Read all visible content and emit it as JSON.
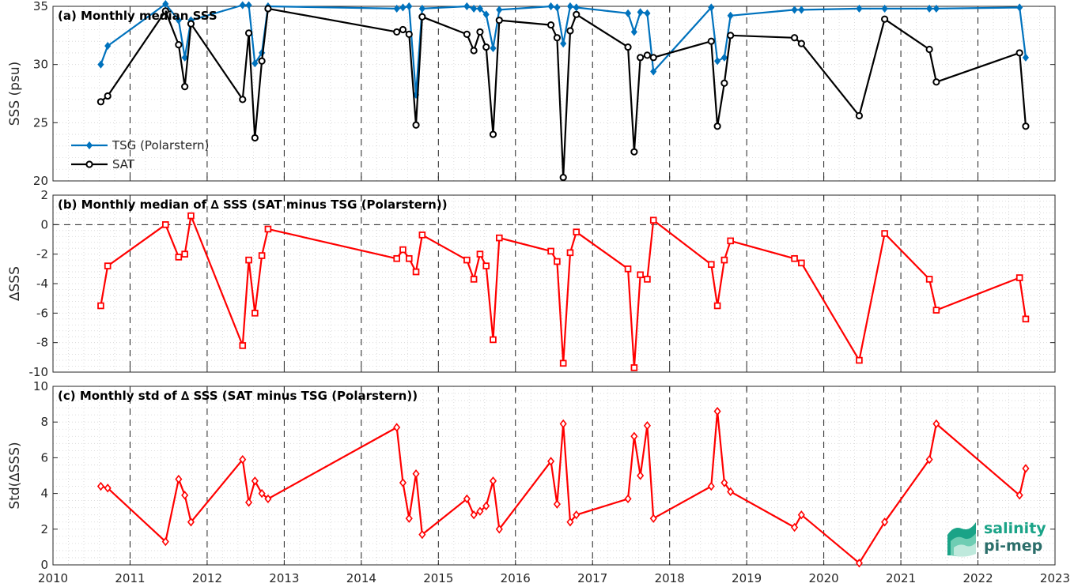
{
  "chart_data": [
    {
      "type": "line",
      "title": "(a) Monthly median SSS",
      "ylabel": "SSS (psu)",
      "xlim": [
        2010,
        2023
      ],
      "ylim": [
        20,
        35
      ],
      "yticks": [
        "20",
        "25",
        "30",
        "35"
      ],
      "grid": "dotted minor + dashed yearly verticals",
      "legend": "middle-left",
      "series": [
        {
          "name": "TSG (Polarstern)",
          "color": "#0072bd",
          "marker": "diamond",
          "x": [
            2010.62,
            2010.71,
            2011.46,
            2011.63,
            2011.71,
            2011.79,
            2012.46,
            2012.54,
            2012.62,
            2012.71,
            2012.79,
            2014.46,
            2014.54,
            2014.62,
            2014.71,
            2014.79,
            2015.37,
            2015.46,
            2015.54,
            2015.62,
            2015.71,
            2015.79,
            2016.46,
            2016.54,
            2016.62,
            2016.71,
            2016.79,
            2017.46,
            2017.54,
            2017.62,
            2017.71,
            2017.79,
            2018.54,
            2018.62,
            2018.71,
            2018.79,
            2019.62,
            2019.71,
            2020.46,
            2020.79,
            2021.37,
            2021.46,
            2022.54,
            2022.62
          ],
          "values": [
            30.0,
            31.6,
            35.2,
            33.8,
            30.6,
            33.8,
            35.1,
            35.1,
            30.1,
            31.0,
            35.0,
            34.8,
            34.9,
            35.0,
            27.4,
            34.8,
            35.0,
            34.8,
            34.8,
            34.3,
            31.4,
            34.7,
            35.0,
            34.9,
            31.8,
            35.0,
            34.9,
            34.4,
            32.8,
            34.5,
            34.4,
            29.4,
            34.9,
            30.3,
            30.6,
            34.2,
            34.7,
            34.7,
            34.8,
            34.8,
            34.8,
            34.8,
            34.9,
            30.6
          ]
        },
        {
          "name": "SAT",
          "color": "#000000",
          "marker": "circle",
          "x": [
            2010.62,
            2010.71,
            2011.46,
            2011.63,
            2011.71,
            2011.79,
            2012.46,
            2012.54,
            2012.62,
            2012.71,
            2012.79,
            2014.46,
            2014.54,
            2014.62,
            2014.71,
            2014.79,
            2015.37,
            2015.46,
            2015.54,
            2015.62,
            2015.71,
            2015.79,
            2016.46,
            2016.54,
            2016.62,
            2016.71,
            2016.79,
            2017.46,
            2017.54,
            2017.62,
            2017.71,
            2017.79,
            2018.54,
            2018.62,
            2018.71,
            2018.79,
            2019.62,
            2019.71,
            2020.46,
            2020.79,
            2021.37,
            2021.46,
            2022.54,
            2022.62
          ],
          "values": [
            26.8,
            27.3,
            34.6,
            31.7,
            28.1,
            33.5,
            27.0,
            32.7,
            23.7,
            30.3,
            34.8,
            32.8,
            33.0,
            32.6,
            24.8,
            34.1,
            32.6,
            31.2,
            32.8,
            31.5,
            24.0,
            33.8,
            33.4,
            32.3,
            20.3,
            32.9,
            34.3,
            31.5,
            22.5,
            30.6,
            30.8,
            30.6,
            32.0,
            24.7,
            28.4,
            32.5,
            32.3,
            31.8,
            25.6,
            33.9,
            31.3,
            28.5,
            31.0,
            24.7
          ]
        }
      ]
    },
    {
      "type": "line",
      "title": "(b) Monthly median of ∆ SSS (SAT minus TSG (Polarstern))",
      "ylabel": "∆SSS",
      "xlim": [
        2010,
        2023
      ],
      "ylim": [
        -10,
        2
      ],
      "yticks": [
        "-10",
        "-8",
        "-6",
        "-4",
        "-2",
        "0",
        "2"
      ],
      "reference_line": 0,
      "series": [
        {
          "color": "#ff0000",
          "marker": "square",
          "x": [
            2010.62,
            2010.71,
            2011.46,
            2011.63,
            2011.71,
            2011.79,
            2012.46,
            2012.54,
            2012.62,
            2012.71,
            2012.79,
            2014.46,
            2014.54,
            2014.62,
            2014.71,
            2014.79,
            2015.37,
            2015.46,
            2015.54,
            2015.62,
            2015.71,
            2015.79,
            2016.46,
            2016.54,
            2016.62,
            2016.71,
            2016.79,
            2017.46,
            2017.54,
            2017.62,
            2017.71,
            2017.79,
            2018.54,
            2018.62,
            2018.71,
            2018.79,
            2019.62,
            2019.71,
            2020.46,
            2020.79,
            2021.37,
            2021.46,
            2022.54,
            2022.62
          ],
          "values": [
            -5.5,
            -2.8,
            0.0,
            -2.2,
            -2.0,
            0.6,
            -8.2,
            -2.4,
            -6.0,
            -2.1,
            -0.3,
            -2.3,
            -1.7,
            -2.3,
            -3.2,
            -0.7,
            -2.4,
            -3.7,
            -2.0,
            -2.8,
            -7.8,
            -0.9,
            -1.8,
            -2.5,
            -9.4,
            -1.9,
            -0.5,
            -3.0,
            -9.7,
            -3.4,
            -3.7,
            0.3,
            -2.7,
            -5.5,
            -2.4,
            -1.1,
            -2.3,
            -2.6,
            -9.2,
            -0.6,
            -3.7,
            -5.8,
            -3.6,
            -6.4
          ]
        }
      ]
    },
    {
      "type": "line",
      "title": "(c) Monthly std of ∆ SSS (SAT minus TSG (Polarstern))",
      "ylabel": "Std(∆SSS)",
      "xlim": [
        2010,
        2023
      ],
      "ylim": [
        0,
        10
      ],
      "yticks": [
        "0",
        "2",
        "4",
        "6",
        "8",
        "10"
      ],
      "xticks": [
        "2010",
        "2011",
        "2012",
        "2013",
        "2014",
        "2015",
        "2016",
        "2017",
        "2018",
        "2019",
        "2020",
        "2021",
        "2022",
        "2023"
      ],
      "series": [
        {
          "color": "#ff0000",
          "marker": "diamond",
          "x": [
            2010.62,
            2010.71,
            2011.46,
            2011.63,
            2011.71,
            2011.79,
            2012.46,
            2012.54,
            2012.62,
            2012.71,
            2012.79,
            2014.46,
            2014.54,
            2014.62,
            2014.71,
            2014.79,
            2015.37,
            2015.46,
            2015.54,
            2015.62,
            2015.71,
            2015.79,
            2016.46,
            2016.54,
            2016.62,
            2016.71,
            2016.79,
            2017.46,
            2017.54,
            2017.62,
            2017.71,
            2017.79,
            2018.54,
            2018.62,
            2018.71,
            2018.79,
            2019.62,
            2019.71,
            2020.46,
            2020.79,
            2021.37,
            2021.46,
            2022.54,
            2022.62
          ],
          "values": [
            4.4,
            4.3,
            1.3,
            4.8,
            3.9,
            2.4,
            5.9,
            3.5,
            4.7,
            4.0,
            3.7,
            7.7,
            4.6,
            2.6,
            5.1,
            1.7,
            3.7,
            2.8,
            3.0,
            3.3,
            4.7,
            2.0,
            5.8,
            3.4,
            7.9,
            2.4,
            2.8,
            3.7,
            7.2,
            5.0,
            7.8,
            2.6,
            4.4,
            8.6,
            4.6,
            4.1,
            2.1,
            2.8,
            0.1,
            2.4,
            5.9,
            7.9,
            3.9,
            5.4
          ]
        }
      ]
    }
  ],
  "logo": {
    "line1": "salinity",
    "line2": "pi-mep",
    "color1": "#1aa387",
    "color2": "#2b6e6a"
  }
}
